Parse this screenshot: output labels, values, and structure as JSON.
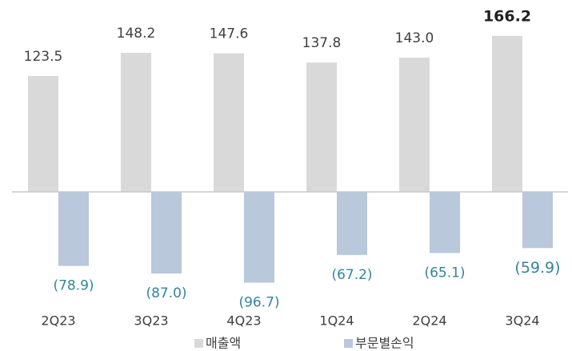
{
  "chart_data": {
    "type": "bar",
    "categories": [
      "2Q23",
      "3Q23",
      "4Q23",
      "1Q24",
      "2Q24",
      "3Q24"
    ],
    "series": [
      {
        "name": "매출액",
        "color": "#d9d9d9",
        "values": [
          123.5,
          148.2,
          147.6,
          137.8,
          143.0,
          166.2
        ],
        "value_labels": [
          "123.5",
          "148.2",
          "147.6",
          "137.8",
          "143.0",
          "166.2"
        ]
      },
      {
        "name": "부문별손익",
        "color": "#b9c8db",
        "values": [
          -78.9,
          -87.0,
          -96.7,
          -67.2,
          -65.1,
          -59.9
        ],
        "value_labels": [
          "(78.9)",
          "(87.0)",
          "(96.7)",
          "(67.2)",
          "(65.1)",
          "(59.9)"
        ]
      }
    ]
  }
}
